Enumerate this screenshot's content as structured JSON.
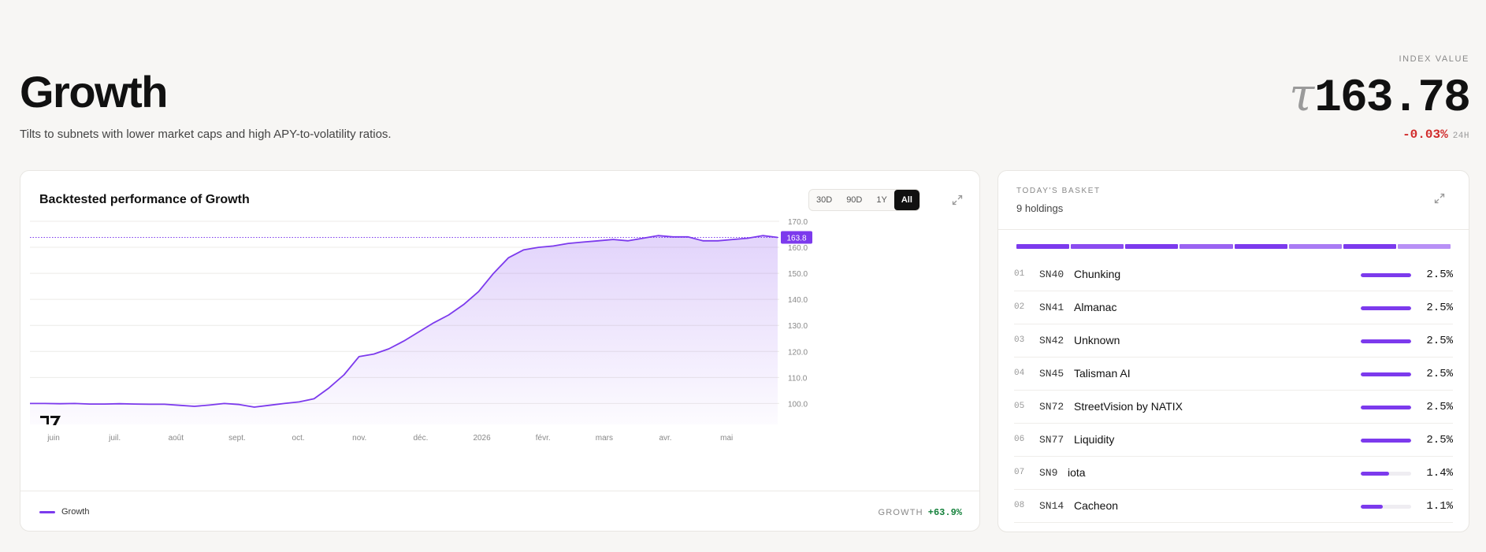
{
  "header": {
    "title": "Growth",
    "subtitle": "Tilts to subnets with lower market caps and high APY-to-volatility ratios.",
    "index_label": "INDEX VALUE",
    "index_symbol": "τ",
    "index_value": "163.78",
    "change": "-0.03%",
    "change_period": "24H"
  },
  "chart_card": {
    "title": "Backtested performance of Growth",
    "ranges": [
      "30D",
      "90D",
      "1Y",
      "All"
    ],
    "active_range": "All",
    "legend_label": "Growth",
    "perf_label": "GROWTH",
    "perf_value": "+63.9%",
    "current_value_badge": "163.8"
  },
  "chart_data": {
    "type": "area",
    "title": "Backtested performance of Growth",
    "series": [
      {
        "name": "Growth",
        "color": "#7c3aed",
        "values": [
          100.0,
          100.0,
          99.9,
          100.0,
          99.8,
          99.8,
          99.9,
          99.8,
          99.7,
          99.7,
          99.3,
          98.9,
          99.4,
          100.0,
          99.6,
          98.6,
          99.3,
          100.0,
          100.6,
          101.8,
          106.0,
          111.0,
          118.0,
          119.0,
          121.0,
          124.0,
          127.5,
          131.0,
          134.0,
          138.0,
          143.0,
          150.0,
          156.0,
          159.0,
          160.0,
          160.5,
          161.5,
          162.0,
          162.5,
          163.0,
          162.5,
          163.5,
          164.5,
          164.0,
          164.0,
          162.5,
          162.5,
          163.0,
          163.5,
          164.5,
          163.8
        ]
      }
    ],
    "x_tick_labels": [
      "juin",
      "juil.",
      "août",
      "sept.",
      "oct.",
      "nov.",
      "déc.",
      "2026",
      "févr.",
      "mars",
      "avr.",
      "mai"
    ],
    "y_ticks": [
      100.0,
      110.0,
      120.0,
      130.0,
      140.0,
      150.0,
      160.0,
      170.0
    ],
    "ylim": [
      98.0,
      170.0
    ],
    "last_value": 163.8,
    "grid": true
  },
  "basket": {
    "label": "TODAY'S BASKET",
    "count": "9 holdings",
    "allocation_colors": [
      "#7c3aed",
      "#8b4cf0",
      "#7c3aed",
      "#9a63f2",
      "#7c3aed",
      "#a97bf4",
      "#7c3aed",
      "#b890f6"
    ],
    "holdings": [
      {
        "num": "01",
        "code": "SN40",
        "name": "Chunking",
        "pct": "2.5%",
        "weight": 1.0
      },
      {
        "num": "02",
        "code": "SN41",
        "name": "Almanac",
        "pct": "2.5%",
        "weight": 1.0
      },
      {
        "num": "03",
        "code": "SN42",
        "name": "Unknown",
        "pct": "2.5%",
        "weight": 1.0
      },
      {
        "num": "04",
        "code": "SN45",
        "name": "Talisman AI",
        "pct": "2.5%",
        "weight": 1.0
      },
      {
        "num": "05",
        "code": "SN72",
        "name": "StreetVision by NATIX",
        "pct": "2.5%",
        "weight": 1.0
      },
      {
        "num": "06",
        "code": "SN77",
        "name": "Liquidity",
        "pct": "2.5%",
        "weight": 1.0
      },
      {
        "num": "07",
        "code": "SN9",
        "name": "iota",
        "pct": "1.4%",
        "weight": 0.56
      },
      {
        "num": "08",
        "code": "SN14",
        "name": "Cacheon",
        "pct": "1.1%",
        "weight": 0.44
      }
    ]
  }
}
